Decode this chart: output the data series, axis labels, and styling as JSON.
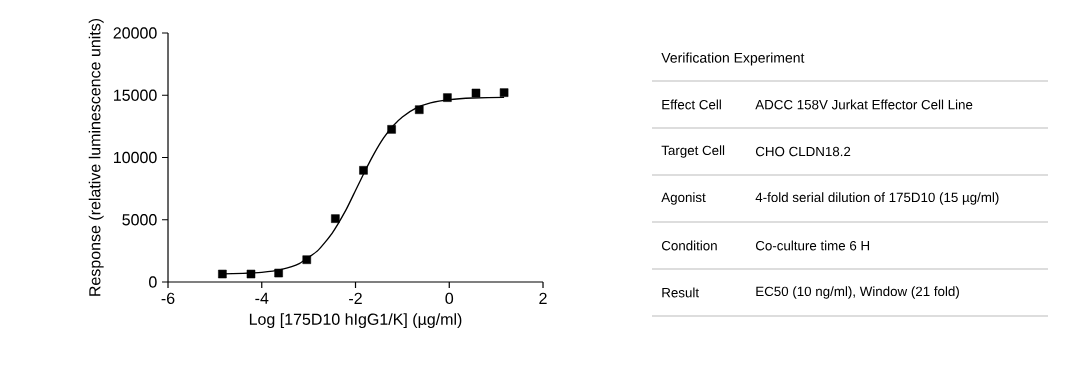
{
  "chart_data": [
    {
      "type": "scatter",
      "xlabel": "Log [175D10 hIgG1/K] (µg/ml)",
      "ylabel": "Response (relative luminescence units)",
      "xlim": [
        -6,
        2
      ],
      "xticks": [
        -6,
        -4,
        -2,
        0,
        2
      ],
      "ylim": [
        0,
        20000
      ],
      "yticks": [
        0,
        5000,
        10000,
        15000,
        20000
      ],
      "series": [
        {
          "type": "scatter",
          "color": "#000000",
          "marker": "square",
          "x": [
            -4.84,
            -4.23,
            -3.64,
            -3.04,
            -2.43,
            -1.83,
            -1.23,
            -0.64,
            -0.04,
            0.57,
            1.17
          ],
          "values": [
            640,
            640,
            720,
            1790,
            5090,
            8970,
            12260,
            13840,
            14810,
            15180,
            15210
          ]
        },
        {
          "type": "line",
          "color": "#000000",
          "marker": "none",
          "x": [
            -4.84,
            -4.4,
            -4.0,
            -3.6,
            -3.2,
            -2.8,
            -2.5,
            -2.2,
            -2.0,
            -1.8,
            -1.6,
            -1.4,
            -1.2,
            -1.0,
            -0.7,
            -0.4,
            0.0,
            0.5,
            1.17
          ],
          "values": [
            650,
            690,
            780,
            1000,
            1480,
            2540,
            3910,
            5810,
            7350,
            8890,
            10330,
            11570,
            12530,
            13260,
            13980,
            14390,
            14650,
            14780,
            14830
          ]
        }
      ]
    },
    {
      "type": "other",
      "title": "Verification Experiment",
      "annotations": [
        "Effect Cell",
        "ADCC 158V Jurkat Effector Cell Line",
        "Target Cell",
        "CHO CLDN18.2",
        "Agonist",
        "4-fold serial dilution of 175D10 (15  µg/ml)",
        "Condition",
        "Co-culture time 6 H",
        "Result",
        "EC50 (10 ng/ml), Window (21 fold)"
      ]
    }
  ]
}
